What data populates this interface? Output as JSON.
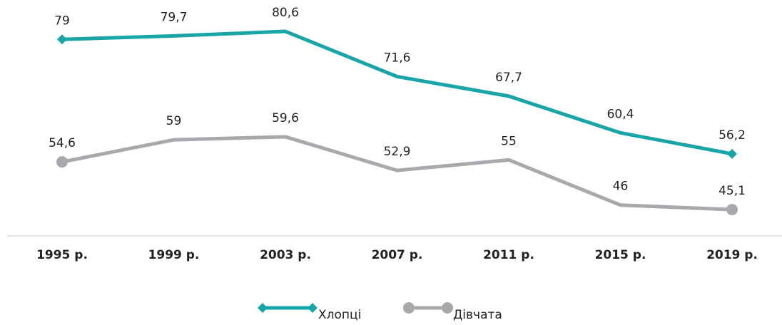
{
  "chart_data": {
    "type": "line",
    "categories": [
      "1995 р.",
      "1999 р.",
      "2003 р.",
      "2007 р.",
      "2011 р.",
      "2015 р.",
      "2019 р."
    ],
    "series": [
      {
        "name": "Хлопці",
        "color": "#19a5a7",
        "marker": "diamond",
        "values": [
          79,
          79.7,
          80.6,
          71.6,
          67.7,
          60.4,
          56.2
        ],
        "value_labels": [
          "79",
          "79,7",
          "80,6",
          "71,6",
          "67,7",
          "60,4",
          "56,2"
        ]
      },
      {
        "name": "Дівчата",
        "color": "#a8a8ad",
        "marker": "circle",
        "values": [
          54.6,
          59,
          59.6,
          52.9,
          55,
          46,
          45.1
        ],
        "value_labels": [
          "54,6",
          "59",
          "59,6",
          "52,9",
          "55",
          "46",
          "45,1"
        ]
      }
    ],
    "ylim": [
      40,
      86
    ],
    "legend": "bottom"
  }
}
